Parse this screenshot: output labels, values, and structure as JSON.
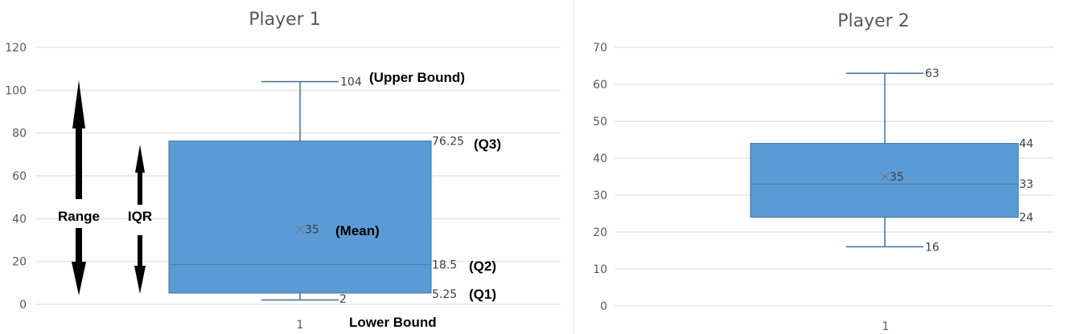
{
  "chart_data": [
    {
      "type": "box",
      "title": "Player 1",
      "categories": [
        "1"
      ],
      "ylim": [
        0,
        120
      ],
      "yticks": [
        0,
        20,
        40,
        60,
        80,
        100,
        120
      ],
      "grid": true,
      "box": {
        "min": 2,
        "q1": 5.25,
        "median": 18.5,
        "q3": 76.25,
        "max": 104,
        "mean": 35
      },
      "data_labels": {
        "max": "104",
        "q3": "76.25",
        "median": "18.5",
        "q1": "5.25",
        "min": "2",
        "mean": "35"
      },
      "annotations": {
        "upper_bound": "(Upper Bound)",
        "q3": "(Q3)",
        "mean": "(Mean)",
        "q2": "(Q2)",
        "q1": "(Q1)",
        "lower_bound": "Lower Bound",
        "range": "Range",
        "iqr": "IQR"
      },
      "colors": {
        "box": "#5b9bd5",
        "line": "#41719c"
      }
    },
    {
      "type": "box",
      "title": "Player 2",
      "categories": [
        "1"
      ],
      "ylim": [
        0,
        70
      ],
      "yticks": [
        0,
        10,
        20,
        30,
        40,
        50,
        60,
        70
      ],
      "grid": true,
      "box": {
        "min": 16,
        "q1": 24,
        "median": 33,
        "q3": 44,
        "max": 63,
        "mean": 35
      },
      "data_labels": {
        "max": "63",
        "q3": "44",
        "median": "33",
        "q1": "24",
        "min": "16",
        "mean": "35"
      },
      "colors": {
        "box": "#5b9bd5",
        "line": "#41719c"
      }
    }
  ]
}
